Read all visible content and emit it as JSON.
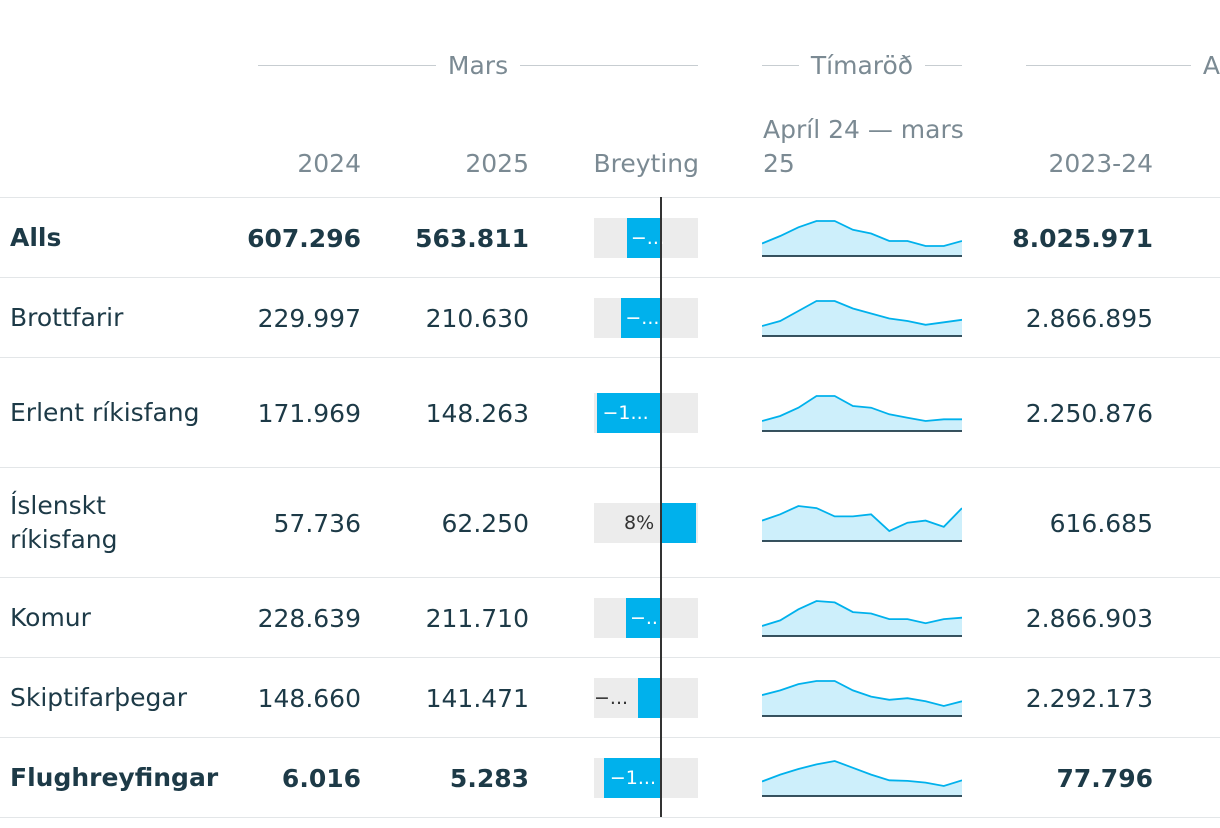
{
  "groups": {
    "mars": "Mars",
    "timarod": "Tímaröð",
    "third": "A"
  },
  "columns": {
    "y2024": "2024",
    "y2025": "2025",
    "change": "Breyting",
    "series_line1": "Apríl 24 — mars",
    "series_line2": "25",
    "y2023_24": "2023-24"
  },
  "colors": {
    "accent": "#00b1ec",
    "spark_fill": "#cdeffb",
    "bar_bg": "#ececec",
    "text": "#1d3a47",
    "muted": "#7b8a93"
  },
  "chart_data": {
    "type": "table",
    "columns": [
      "2024",
      "2025",
      "Breyting",
      "Apríl 24 — mars 25",
      "2023-24"
    ],
    "rows": [
      {
        "label": "Alls",
        "bold": true,
        "v2024": "607.296",
        "v2025": "563.811",
        "change_pct": -7.2,
        "change_label": "−...",
        "v2023_24": "8.025.971",
        "spark": [
          640,
          700,
          770,
          820,
          820,
          750,
          720,
          660,
          660,
          620,
          620,
          660
        ]
      },
      {
        "label": "Brottfarir",
        "bold": false,
        "v2024": "229.997",
        "v2025": "210.630",
        "change_pct": -8.4,
        "change_label": "−...",
        "v2023_24": "2.866.895",
        "spark": [
          220,
          240,
          280,
          320,
          320,
          290,
          270,
          250,
          240,
          225,
          235,
          245
        ]
      },
      {
        "label": "Erlent ríkisfang",
        "bold": false,
        "v2024": "171.969",
        "v2025": "148.263",
        "change_pct": -13.8,
        "change_label": "−1...",
        "v2023_24": "2.250.876",
        "spark": [
          130,
          145,
          170,
          205,
          205,
          175,
          170,
          150,
          140,
          130,
          135,
          135
        ]
      },
      {
        "label": "Íslenskt ríkisfang",
        "bold": false,
        "v2024": "57.736",
        "v2025": "62.250",
        "change_pct": 7.8,
        "change_label": "8%",
        "v2023_24": "616.685",
        "spark": [
          51,
          54,
          58,
          57,
          53,
          53,
          54,
          46,
          50,
          51,
          48,
          57
        ]
      },
      {
        "label": "Komur",
        "bold": false,
        "v2024": "228.639",
        "v2025": "211.710",
        "change_pct": -7.4,
        "change_label": "−...",
        "v2023_24": "2.866.903",
        "spark": [
          220,
          240,
          280,
          310,
          305,
          270,
          265,
          245,
          245,
          230,
          245,
          250
        ]
      },
      {
        "label": "Skiptifarþegar",
        "bold": false,
        "v2024": "148.660",
        "v2025": "141.471",
        "change_pct": -4.8,
        "change_label": "−...",
        "v2023_24": "2.292.173",
        "spark": [
          175,
          190,
          210,
          220,
          220,
          190,
          170,
          160,
          165,
          155,
          140,
          155
        ]
      },
      {
        "label": "Flughreyfingar",
        "bold": true,
        "v2024": "6.016",
        "v2025": "5.283",
        "change_pct": -12.2,
        "change_label": "−1...",
        "v2023_24": "77.796",
        "spark": [
          6.2,
          6.8,
          7.3,
          7.7,
          8.0,
          7.4,
          6.8,
          6.3,
          6.25,
          6.1,
          5.8,
          6.3
        ]
      }
    ]
  }
}
